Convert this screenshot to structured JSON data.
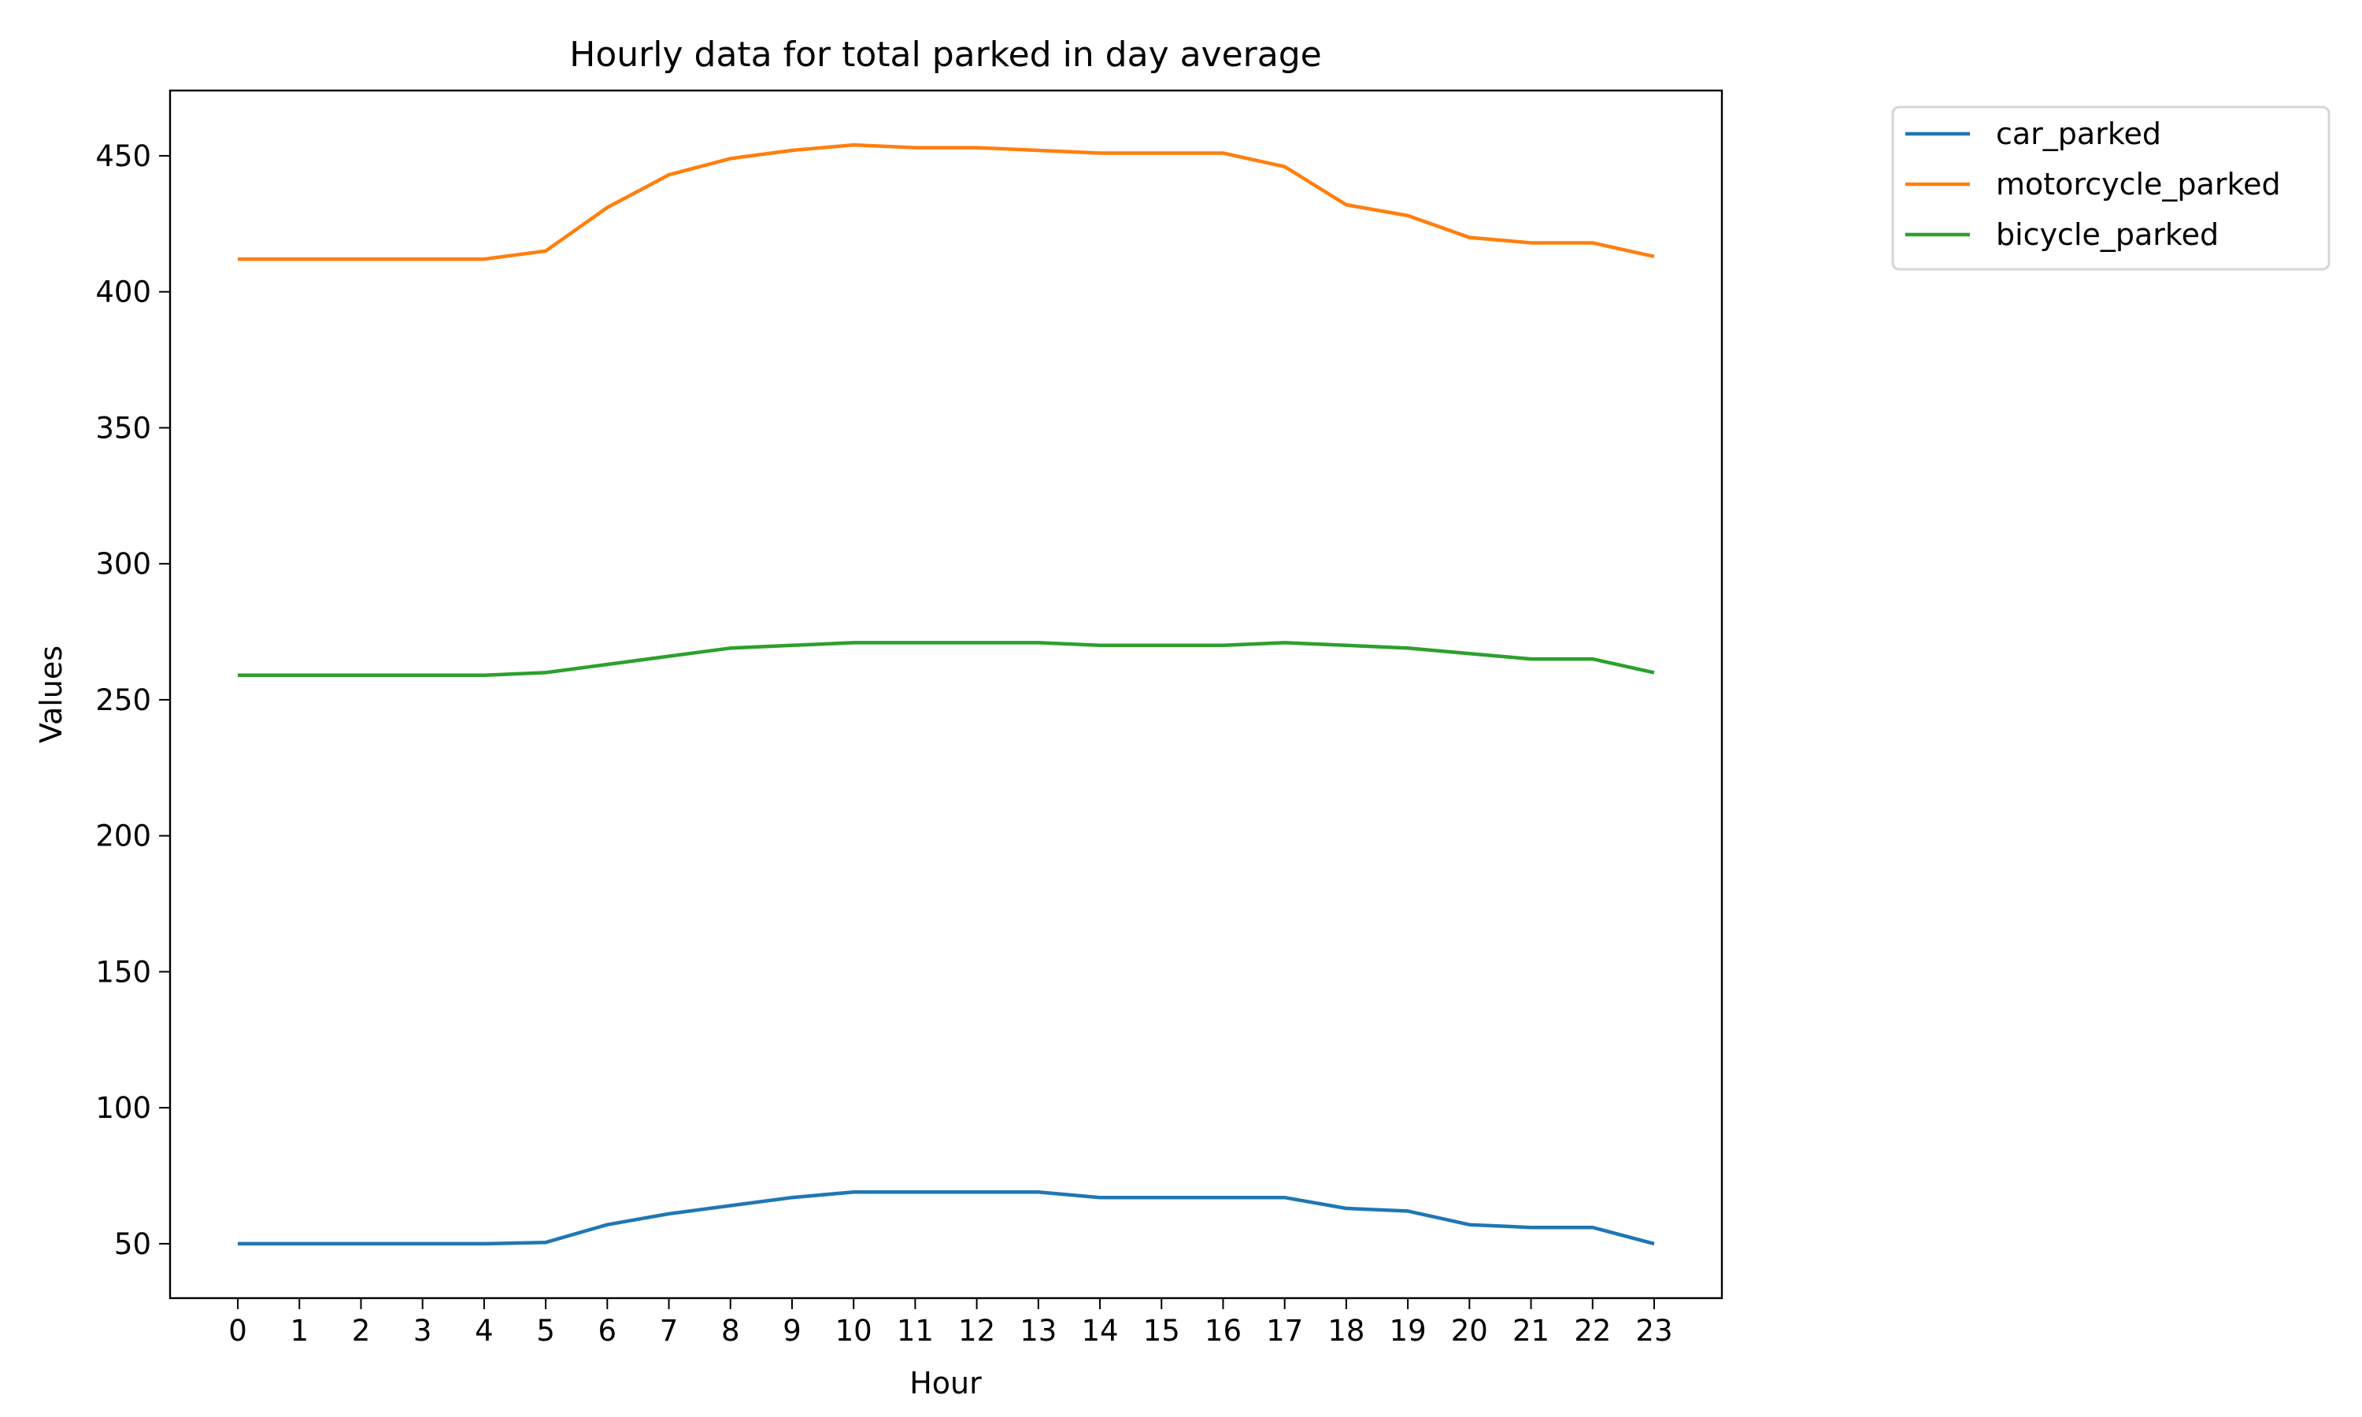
{
  "chart_data": {
    "type": "line",
    "title": "Hourly data for total parked in day average",
    "xlabel": "Hour",
    "ylabel": "Values",
    "x": [
      0,
      1,
      2,
      3,
      4,
      5,
      6,
      7,
      8,
      9,
      10,
      11,
      12,
      13,
      14,
      15,
      16,
      17,
      18,
      19,
      20,
      21,
      22,
      23
    ],
    "xticks": [
      "0",
      "1",
      "2",
      "3",
      "4",
      "5",
      "6",
      "7",
      "8",
      "9",
      "10",
      "11",
      "12",
      "13",
      "14",
      "15",
      "16",
      "17",
      "18",
      "19",
      "20",
      "21",
      "22",
      "23"
    ],
    "yticks": [
      "50",
      "100",
      "150",
      "200",
      "250",
      "300",
      "350",
      "400",
      "450"
    ],
    "ylim": [
      30,
      474
    ],
    "xlim": [
      -1.1,
      24.1
    ],
    "grid": false,
    "legend_position": "outside-top-right",
    "series": [
      {
        "name": "car_parked",
        "color": "#1f77b4",
        "values": [
          50,
          50,
          50,
          50,
          50,
          50.5,
          57,
          61,
          64,
          67,
          69,
          69,
          69,
          69,
          67,
          67,
          67,
          67,
          63,
          62,
          57,
          56,
          56,
          50
        ]
      },
      {
        "name": "motorcycle_parked",
        "color": "#ff7f0e",
        "values": [
          412,
          412,
          412,
          412,
          412,
          415,
          431,
          443,
          449,
          452,
          454,
          453,
          453,
          452,
          451,
          451,
          451,
          446,
          432,
          428,
          420,
          418,
          418,
          413
        ]
      },
      {
        "name": "bicycle_parked",
        "color": "#2ca02c",
        "values": [
          259,
          259,
          259,
          259,
          259,
          260,
          263,
          266,
          269,
          270,
          271,
          271,
          271,
          271,
          270,
          270,
          270,
          271,
          270,
          269,
          267,
          265,
          265,
          260
        ]
      }
    ]
  }
}
